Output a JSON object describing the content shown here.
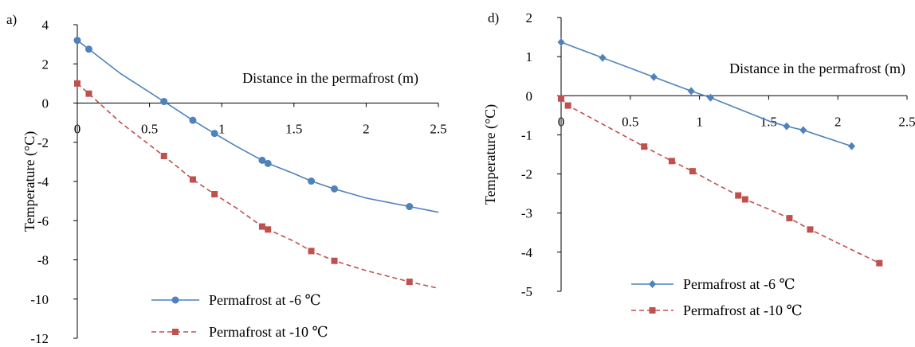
{
  "chart_data": [
    {
      "panel_label": "a)",
      "type": "line",
      "title": "",
      "xlabel": "Distance in the permafrost (m)",
      "ylabel": "Temperature (°C)",
      "xlim": [
        0,
        2.5
      ],
      "ylim": [
        -12,
        4
      ],
      "x_ticks": [
        0,
        0.5,
        1,
        1.5,
        2,
        2.5
      ],
      "x_tick_labels": [
        "0",
        "0.5",
        "1",
        "1.5",
        "2",
        "2.5"
      ],
      "y_ticks": [
        -12,
        -10,
        -8,
        -6,
        -4,
        -2,
        0,
        2,
        4
      ],
      "y_tick_labels": [
        "-12",
        "-10",
        "-8",
        "-6",
        "-4",
        "-2",
        "0",
        "2",
        "4"
      ],
      "grid": false,
      "legend_position": "bottom-center",
      "series": [
        {
          "name": "Permafrost at -6 ℃",
          "color": "#4F81BD",
          "marker": "circle",
          "line_style": "solid",
          "curve": [
            [
              0,
              3.2
            ],
            [
              0.08,
              2.75
            ],
            [
              0.3,
              1.5
            ],
            [
              0.6,
              0.08
            ],
            [
              0.8,
              -0.88
            ],
            [
              0.95,
              -1.55
            ],
            [
              1.1,
              -2.2
            ],
            [
              1.28,
              -2.92
            ],
            [
              1.32,
              -3.08
            ],
            [
              1.5,
              -3.6
            ],
            [
              1.62,
              -3.98
            ],
            [
              1.78,
              -4.38
            ],
            [
              2.0,
              -4.85
            ],
            [
              2.3,
              -5.28
            ],
            [
              2.5,
              -5.57
            ]
          ],
          "points": [
            [
              0,
              3.2
            ],
            [
              0.08,
              2.75
            ],
            [
              0.6,
              0.08
            ],
            [
              0.8,
              -0.88
            ],
            [
              0.95,
              -1.55
            ],
            [
              1.28,
              -2.92
            ],
            [
              1.32,
              -3.08
            ],
            [
              1.62,
              -3.98
            ],
            [
              1.78,
              -4.38
            ],
            [
              2.3,
              -5.28
            ]
          ]
        },
        {
          "name": "Permafrost at -10 ℃",
          "color": "#C0504D",
          "marker": "square",
          "line_style": "dashed",
          "curve": [
            [
              0,
              1.0
            ],
            [
              0.08,
              0.48
            ],
            [
              0.3,
              -1.0
            ],
            [
              0.6,
              -2.7
            ],
            [
              0.8,
              -3.9
            ],
            [
              0.95,
              -4.65
            ],
            [
              1.1,
              -5.35
            ],
            [
              1.28,
              -6.3
            ],
            [
              1.32,
              -6.45
            ],
            [
              1.5,
              -7.05
            ],
            [
              1.62,
              -7.55
            ],
            [
              1.78,
              -8.05
            ],
            [
              2.0,
              -8.55
            ],
            [
              2.3,
              -9.12
            ],
            [
              2.5,
              -9.45
            ]
          ],
          "points": [
            [
              0,
              1.0
            ],
            [
              0.08,
              0.48
            ],
            [
              0.6,
              -2.7
            ],
            [
              0.8,
              -3.9
            ],
            [
              0.95,
              -4.65
            ],
            [
              1.28,
              -6.3
            ],
            [
              1.32,
              -6.45
            ],
            [
              1.62,
              -7.55
            ],
            [
              1.78,
              -8.05
            ],
            [
              2.3,
              -9.12
            ]
          ]
        }
      ]
    },
    {
      "panel_label": "d)",
      "type": "line",
      "title": "",
      "xlabel": "Distance in the permafrost (m)",
      "ylabel": "Temperature (°C)",
      "xlim": [
        0,
        2.5
      ],
      "ylim": [
        -5,
        2
      ],
      "x_ticks": [
        0,
        0.5,
        1,
        1.5,
        2,
        2.5
      ],
      "x_tick_labels": [
        "0",
        "0.5",
        "1",
        "1.5",
        "2",
        "2.5"
      ],
      "y_ticks": [
        -5,
        -4,
        -3,
        -2,
        -1,
        0,
        1,
        2
      ],
      "y_tick_labels": [
        "-5",
        "-4",
        "-3",
        "-2",
        "-1",
        "0",
        "1",
        "2"
      ],
      "grid": false,
      "legend_position": "bottom-center",
      "series": [
        {
          "name": "Permafrost at -6 ℃",
          "color": "#4F81BD",
          "marker": "diamond",
          "line_style": "solid",
          "curve": [
            [
              0,
              1.37
            ],
            [
              0.3,
              0.97
            ],
            [
              0.67,
              0.48
            ],
            [
              0.94,
              0.12
            ],
            [
              1.08,
              -0.05
            ],
            [
              1.3,
              -0.36
            ],
            [
              1.52,
              -0.67
            ],
            [
              1.63,
              -0.78
            ],
            [
              1.75,
              -0.88
            ],
            [
              2.1,
              -1.29
            ]
          ],
          "points": [
            [
              0,
              1.37
            ],
            [
              0.3,
              0.97
            ],
            [
              0.67,
              0.48
            ],
            [
              0.94,
              0.12
            ],
            [
              1.08,
              -0.05
            ],
            [
              1.63,
              -0.78
            ],
            [
              1.75,
              -0.88
            ],
            [
              2.1,
              -1.29
            ]
          ]
        },
        {
          "name": "Permafrost at -10 ℃",
          "color": "#C0504D",
          "marker": "square",
          "line_style": "dashed",
          "curve": [
            [
              0,
              -0.07
            ],
            [
              0.05,
              -0.25
            ],
            [
              0.6,
              -1.3
            ],
            [
              0.8,
              -1.67
            ],
            [
              0.95,
              -1.93
            ],
            [
              1.1,
              -2.22
            ],
            [
              1.28,
              -2.55
            ],
            [
              1.33,
              -2.65
            ],
            [
              1.5,
              -2.9
            ],
            [
              1.65,
              -3.13
            ],
            [
              1.8,
              -3.42
            ],
            [
              2.3,
              -4.28
            ]
          ],
          "points": [
            [
              0,
              -0.07
            ],
            [
              0.05,
              -0.25
            ],
            [
              0.6,
              -1.3
            ],
            [
              0.8,
              -1.67
            ],
            [
              0.95,
              -1.93
            ],
            [
              1.28,
              -2.55
            ],
            [
              1.33,
              -2.65
            ],
            [
              1.65,
              -3.13
            ],
            [
              1.8,
              -3.42
            ],
            [
              2.3,
              -4.28
            ]
          ]
        }
      ]
    }
  ]
}
